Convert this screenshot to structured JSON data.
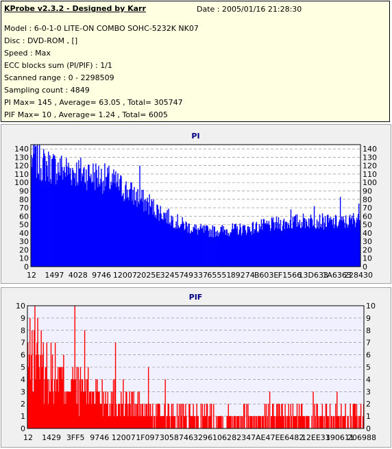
{
  "info": {
    "title": "KProbe v2.3.2 - Designed by Karr",
    "date": "Date : 2005/01/16 21:28:30",
    "lines": [
      "Model : 6-0-1-0 LITE-ON COMBO SOHC-5232K NK07",
      "Disc : DVD-ROM ,  []",
      "Speed : Max",
      "ECC blocks sum (PI/PIF) : 1/1",
      "Scanned range : 0 - 2298509",
      "Sampling count : 4849",
      "PI Max= 145 , Average= 63.05 , Total= 305747",
      "PIF Max= 10 , Average= 1.24 , Total= 6005"
    ]
  },
  "colors": {
    "pi_bar": "#0000ff",
    "pif_bar": "#ff0000",
    "grid": "#808080",
    "plot_bg": "#ffffff",
    "pif_plot_bg": "#f0f0ff"
  },
  "chart_data": [
    {
      "type": "bar",
      "title": "PI",
      "ylim": [
        0,
        145
      ],
      "yticks": [
        0,
        10,
        20,
        30,
        40,
        50,
        60,
        70,
        80,
        90,
        100,
        110,
        120,
        130,
        140
      ],
      "grid": true,
      "x_tick_labels": [
        "12",
        "1497",
        "4028",
        "9746",
        "12007",
        "2025E",
        "32457",
        "49337",
        "65551",
        "89274",
        "B603E",
        "F1566",
        "13D633",
        "1A6363",
        "228430"
      ],
      "profile": [
        [
          0,
          128
        ],
        [
          0.03,
          122
        ],
        [
          0.07,
          118
        ],
        [
          0.12,
          114
        ],
        [
          0.18,
          110
        ],
        [
          0.22,
          105
        ],
        [
          0.26,
          98
        ],
        [
          0.3,
          88
        ],
        [
          0.34,
          78
        ],
        [
          0.38,
          68
        ],
        [
          0.42,
          58
        ],
        [
          0.46,
          50
        ],
        [
          0.5,
          44
        ],
        [
          0.54,
          42
        ],
        [
          0.58,
          43
        ],
        [
          0.62,
          44
        ],
        [
          0.66,
          45
        ],
        [
          0.7,
          48
        ],
        [
          0.74,
          50
        ],
        [
          0.78,
          52
        ],
        [
          0.82,
          54
        ],
        [
          0.86,
          55
        ],
        [
          0.9,
          53
        ],
        [
          0.94,
          52
        ],
        [
          0.97,
          54
        ],
        [
          1.0,
          60
        ]
      ],
      "spikes": [
        [
          0.01,
          145
        ],
        [
          0.33,
          120
        ],
        [
          0.36,
          86
        ],
        [
          0.79,
          68
        ],
        [
          0.86,
          72
        ],
        [
          0.94,
          83
        ],
        [
          0.995,
          75
        ]
      ],
      "samples": 480
    },
    {
      "type": "bar",
      "title": "PIF",
      "ylim": [
        0,
        10
      ],
      "yticks": [
        0,
        1,
        2,
        3,
        4,
        5,
        6,
        7,
        8,
        9,
        10
      ],
      "grid": true,
      "x_tick_labels": [
        "12",
        "1429",
        "3FF5",
        "9746",
        "12007",
        "1F097",
        "30587",
        "46329",
        "61062",
        "82347",
        "AE47E",
        "E6482",
        "12EE33",
        "190611",
        "206988"
      ],
      "profile": [
        [
          0,
          6
        ],
        [
          0.05,
          5
        ],
        [
          0.1,
          4
        ],
        [
          0.15,
          3.5
        ],
        [
          0.2,
          3
        ],
        [
          0.25,
          2.5
        ],
        [
          0.3,
          2
        ],
        [
          0.35,
          1.5
        ],
        [
          0.4,
          1.2
        ],
        [
          0.45,
          1
        ],
        [
          0.6,
          1
        ],
        [
          0.8,
          1
        ],
        [
          1.0,
          1
        ]
      ],
      "spikes": [
        [
          0.02,
          10
        ],
        [
          0.03,
          9
        ],
        [
          0.14,
          10
        ],
        [
          0.17,
          8
        ],
        [
          0.26,
          7
        ],
        [
          0.36,
          5
        ],
        [
          0.41,
          4
        ],
        [
          0.72,
          3
        ],
        [
          0.85,
          3
        ],
        [
          0.92,
          3
        ]
      ],
      "samples": 480
    }
  ]
}
